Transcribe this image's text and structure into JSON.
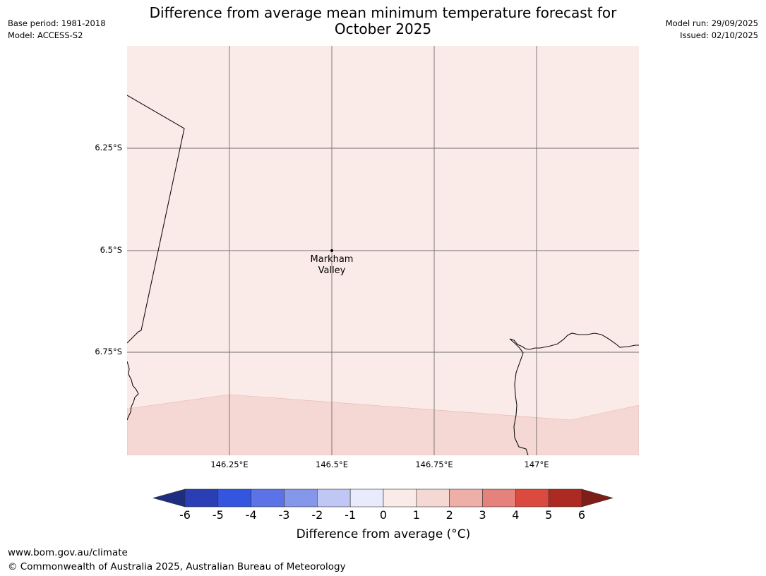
{
  "header": {
    "title_line1": "Difference from average mean minimum temperature forecast for",
    "title_line2": "October 2025",
    "base_period": "Base period: 1981-2018",
    "model": "Model: ACCESS-S2",
    "model_run": "Model run: 29/09/2025",
    "issued": "Issued: 02/10/2025"
  },
  "map": {
    "latitude_labels": [
      "6.25°S",
      "6.5°S",
      "6.75°S"
    ],
    "longitude_labels": [
      "146.25°E",
      "146.5°E",
      "146.75°E",
      "147°E"
    ],
    "place": {
      "name_line1": "Markham",
      "name_line2": "Valley"
    },
    "region_colors": {
      "zero_to_one": "#fbebe8",
      "one_to_two": "#f5d7d4"
    }
  },
  "colorbar": {
    "ticks": [
      "-6",
      "-5",
      "-4",
      "-3",
      "-2",
      "-1",
      "0",
      "1",
      "2",
      "3",
      "4",
      "5",
      "6"
    ],
    "colors": [
      "#1f2d80",
      "#2a3fb5",
      "#3355e0",
      "#5b73e6",
      "#8597ea",
      "#c0c7f5",
      "#e8ebfc",
      "#fbebe8",
      "#f5d7d4",
      "#eeafa9",
      "#e5827b",
      "#da4a3e",
      "#ad2a22",
      "#7f1e18"
    ],
    "label": "Difference from average (°C)"
  },
  "footer": {
    "url": "www.bom.gov.au/climate",
    "copyright": "© Commonwealth of Australia 2025, Australian Bureau of Meteorology"
  }
}
